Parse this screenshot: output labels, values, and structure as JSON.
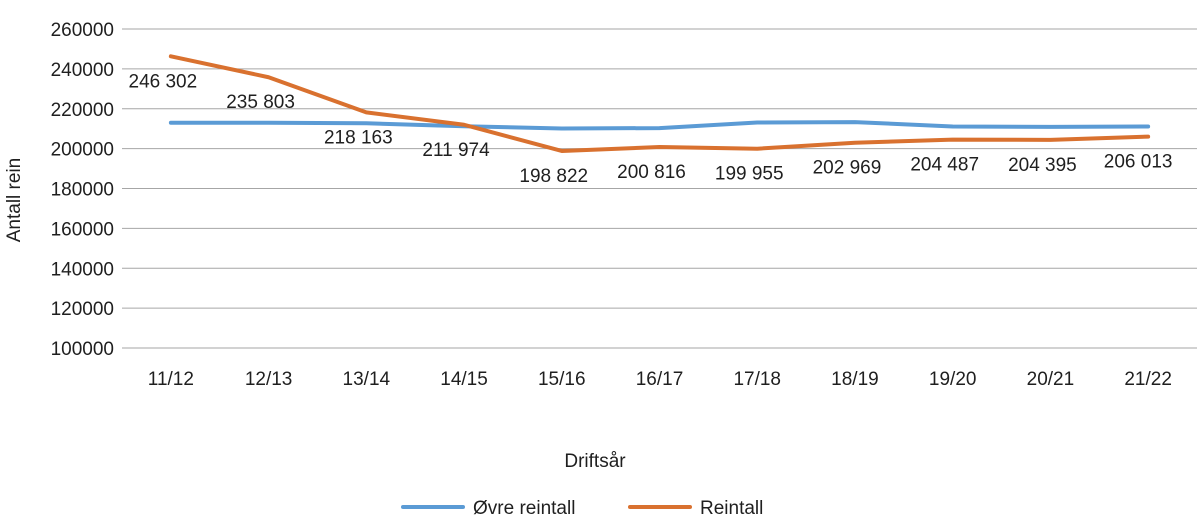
{
  "chart_data": {
    "type": "line",
    "title": "",
    "xlabel": "Driftsår",
    "ylabel": "Antall rein",
    "categories": [
      "11/12",
      "12/13",
      "13/14",
      "14/15",
      "15/16",
      "16/17",
      "17/18",
      "18/19",
      "19/20",
      "20/21",
      "21/22"
    ],
    "series": [
      {
        "name": "Øvre reintall",
        "color": "#5B9BD5",
        "values": [
          213000,
          213000,
          212700,
          211200,
          210100,
          210300,
          213100,
          213300,
          211100,
          210900,
          211100
        ],
        "show_labels": false
      },
      {
        "name": "Reintall",
        "color": "#D9712F",
        "values": [
          246302,
          235803,
          218163,
          211974,
          198822,
          200816,
          199955,
          202969,
          204487,
          204395,
          206013
        ],
        "show_labels": true,
        "labels": [
          "246 302",
          "235 803",
          "218 163",
          "211 974",
          "198 822",
          "200 816",
          "199 955",
          "202 969",
          "204 487",
          "204 395",
          "206 013"
        ]
      }
    ],
    "ylim": [
      100000,
      260000
    ],
    "ytick_step": 20000,
    "ytick_labels": [
      "260000",
      "240000",
      "220000",
      "200000",
      "180000",
      "160000",
      "140000",
      "120000",
      "100000"
    ],
    "grid": "horizontal-only",
    "legend_position": "bottom",
    "colors": {
      "text": "#1f1f1f",
      "gridline": "#A6A6A6"
    }
  }
}
